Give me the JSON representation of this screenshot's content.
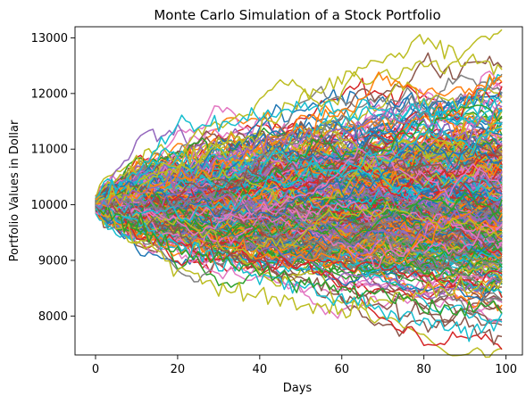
{
  "chart_data": {
    "type": "line",
    "title": "Monte Carlo Simulation of a Stock Portfolio",
    "xlabel": "Days",
    "ylabel": "Portfolio Values in Dollar",
    "xlim": [
      -5,
      104
    ],
    "ylim": [
      7300,
      13200
    ],
    "xticks": [
      0,
      20,
      40,
      60,
      80,
      100
    ],
    "yticks": [
      8000,
      9000,
      10000,
      11000,
      12000,
      13000
    ],
    "grid": false,
    "legend": "none",
    "colors": [
      "#1f77b4",
      "#ff7f0e",
      "#2ca02c",
      "#d62728",
      "#9467bd",
      "#8c564b",
      "#e377c2",
      "#7f7f7f",
      "#bcbd22",
      "#17becf"
    ],
    "series_count": 500,
    "days": 100,
    "start_value": 10000,
    "representative_series": [
      {
        "name": "",
        "color": "#bcbd22",
        "x": [
          0,
          10,
          20,
          30,
          40,
          50,
          60,
          70,
          80,
          90,
          99
        ],
        "y": [
          10000,
          10300,
          10700,
          11100,
          11300,
          11900,
          12300,
          12600,
          12950,
          12600,
          12450
        ]
      },
      {
        "name": "",
        "color": "#17becf",
        "x": [
          0,
          10,
          20,
          30,
          40,
          50,
          60,
          70,
          80,
          90,
          99
        ],
        "y": [
          10000,
          10500,
          11500,
          11400,
          11600,
          11800,
          11700,
          11600,
          11700,
          11800,
          12350
        ]
      },
      {
        "name": "",
        "color": "#ff7f0e",
        "x": [
          0,
          10,
          20,
          30,
          40,
          50,
          60,
          70,
          80,
          90,
          99
        ],
        "y": [
          10000,
          10200,
          10400,
          10700,
          11000,
          11300,
          11600,
          12300,
          12000,
          12100,
          12300
        ]
      },
      {
        "name": "",
        "color": "#8c564b",
        "x": [
          0,
          10,
          20,
          30,
          40,
          50,
          60,
          70,
          80,
          90,
          99
        ],
        "y": [
          10000,
          9800,
          9500,
          9200,
          8900,
          8700,
          8400,
          8200,
          8100,
          7800,
          7600
        ]
      },
      {
        "name": "",
        "color": "#bcbd22",
        "x": [
          0,
          10,
          20,
          30,
          40,
          50,
          60,
          70,
          80,
          90,
          99
        ],
        "y": [
          10000,
          9400,
          8900,
          8500,
          8400,
          8200,
          8100,
          8300,
          8400,
          8500,
          8600
        ]
      },
      {
        "name": "",
        "color": "#17becf",
        "x": [
          0,
          10,
          20,
          30,
          40,
          50,
          60,
          70,
          80,
          90,
          99
        ],
        "y": [
          10000,
          9700,
          9300,
          9000,
          8700,
          8500,
          8300,
          8100,
          7900,
          7700,
          7900
        ]
      },
      {
        "name": "",
        "color": "#2ca02c",
        "x": [
          0,
          10,
          20,
          30,
          40,
          50,
          60,
          70,
          80,
          90,
          99
        ],
        "y": [
          10000,
          9600,
          9200,
          9000,
          8800,
          8600,
          8500,
          8400,
          8200,
          8100,
          8200
        ]
      },
      {
        "name": "",
        "color": "#9467bd",
        "x": [
          0,
          10,
          20,
          30,
          40,
          50,
          60,
          70,
          80,
          90,
          99
        ],
        "y": [
          10000,
          10200,
          10500,
          10800,
          11100,
          11200,
          11300,
          11600,
          11500,
          11300,
          11700
        ]
      }
    ]
  }
}
